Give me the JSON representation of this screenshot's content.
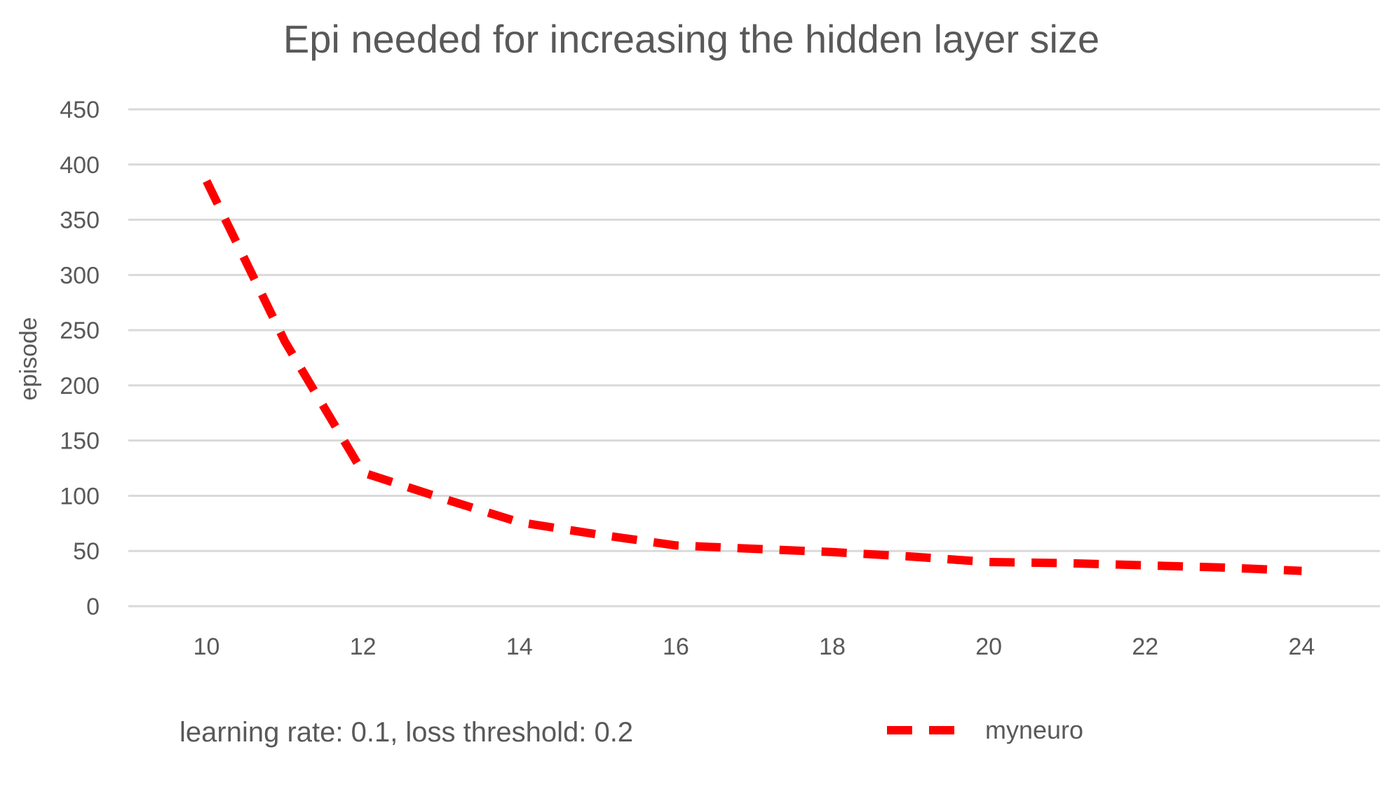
{
  "chart_data": {
    "type": "line",
    "title": "Epi needed for increasing the hidden layer size",
    "xlabel": "",
    "ylabel": "episode",
    "note": "learning rate: 0.1,  loss threshold: 0.2",
    "xlim": [
      9,
      25
    ],
    "ylim": [
      0,
      450
    ],
    "x_ticks": [
      10,
      12,
      14,
      16,
      18,
      20,
      22,
      24
    ],
    "y_ticks": [
      0,
      50,
      100,
      150,
      200,
      250,
      300,
      350,
      400,
      450
    ],
    "grid": true,
    "legend_position": "bottom-right",
    "series": [
      {
        "name": "myneuro",
        "color": "#ff0000",
        "line_style": "dashed",
        "x": [
          10,
          11,
          12,
          13,
          14,
          15,
          16,
          17,
          18,
          19,
          20,
          21,
          22,
          23,
          24
        ],
        "y": [
          385,
          240,
          121,
          98,
          76,
          65,
          55,
          52,
          49,
          45,
          40,
          39,
          37,
          35,
          32
        ]
      }
    ],
    "colors": {
      "grid": "#d9d9d9",
      "text": "#595959"
    }
  }
}
